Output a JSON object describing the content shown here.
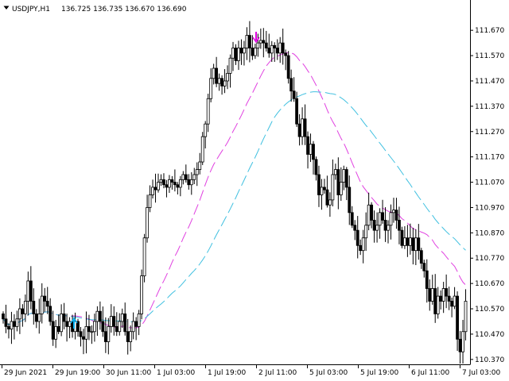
{
  "header": {
    "symbol": "USDJPY,H1",
    "ohlc": "136.725 136.735 136.670 136.690"
  },
  "colors": {
    "background": "#ffffff",
    "candle": "#000000",
    "ma_fast": "#e040e0",
    "ma_slow": "#40c0e0",
    "arrow_up": "#00b0f0",
    "arrow_down": "#e000e0"
  },
  "chart_data": {
    "type": "candlestick",
    "y_ticks": [
      "111.670",
      "111.570",
      "111.470",
      "111.370",
      "111.270",
      "111.170",
      "111.070",
      "110.970",
      "110.870",
      "110.770",
      "110.670",
      "110.570",
      "110.470",
      "110.370"
    ],
    "x_ticks": [
      "29 Jun 2021",
      "29 Jun 19:00",
      "30 Jun 11:00",
      "1 Jul 03:00",
      "1 Jul 19:00",
      "2 Jul 11:00",
      "5 Jul 03:00",
      "5 Jul 19:00",
      "6 Jul 11:00",
      "7 Jul 03:00"
    ],
    "ylim": [
      110.335,
      111.705
    ],
    "close": [
      110.53,
      110.5,
      110.49,
      110.52,
      110.5,
      110.53,
      110.57,
      110.55,
      110.6,
      110.68,
      110.6,
      110.55,
      110.52,
      110.55,
      110.62,
      110.6,
      110.58,
      110.52,
      110.45,
      110.5,
      110.48,
      110.55,
      110.52,
      110.5,
      110.52,
      110.48,
      110.52,
      110.48,
      110.46,
      110.45,
      110.5,
      110.48,
      110.48,
      110.52,
      110.56,
      110.52,
      110.48,
      110.44,
      110.5,
      110.54,
      110.5,
      110.48,
      110.52,
      110.55,
      110.48,
      110.44,
      110.48,
      110.52,
      110.5,
      110.55,
      110.7,
      110.85,
      110.97,
      111.02,
      111.05,
      111.04,
      111.07,
      111.08,
      111.06,
      111.05,
      111.08,
      111.07,
      111.06,
      111.05,
      111.08,
      111.1,
      111.08,
      111.06,
      111.08,
      111.1,
      111.12,
      111.15,
      111.25,
      111.3,
      111.4,
      111.48,
      111.52,
      111.46,
      111.48,
      111.45,
      111.47,
      111.5,
      111.56,
      111.6,
      111.55,
      111.6,
      111.58,
      111.6,
      111.65,
      111.6,
      111.57,
      111.6,
      111.62,
      111.63,
      111.62,
      111.6,
      111.58,
      111.61,
      111.6,
      111.58,
      111.62,
      111.58,
      111.57,
      111.48,
      111.43,
      111.4,
      111.3,
      111.25,
      111.32,
      111.25,
      111.18,
      111.22,
      111.16,
      111.1,
      111.02,
      111.05,
      111.04,
      110.98,
      111.0,
      111.1,
      111.12,
      111.02,
      111.07,
      111.12,
      111.05,
      110.95,
      110.9,
      110.88,
      110.82,
      110.8,
      110.85,
      110.9,
      110.98,
      110.92,
      110.88,
      110.9,
      110.95,
      110.92,
      110.88,
      110.9,
      110.95,
      110.96,
      110.92,
      110.88,
      110.82,
      110.85,
      110.82,
      110.85,
      110.8,
      110.85,
      110.8,
      110.75,
      110.72,
      110.65,
      110.6,
      110.65,
      110.55,
      110.62,
      110.6,
      110.65,
      110.62,
      110.6,
      110.58,
      110.62,
      110.45,
      110.4,
      110.48,
      110.6
    ]
  }
}
